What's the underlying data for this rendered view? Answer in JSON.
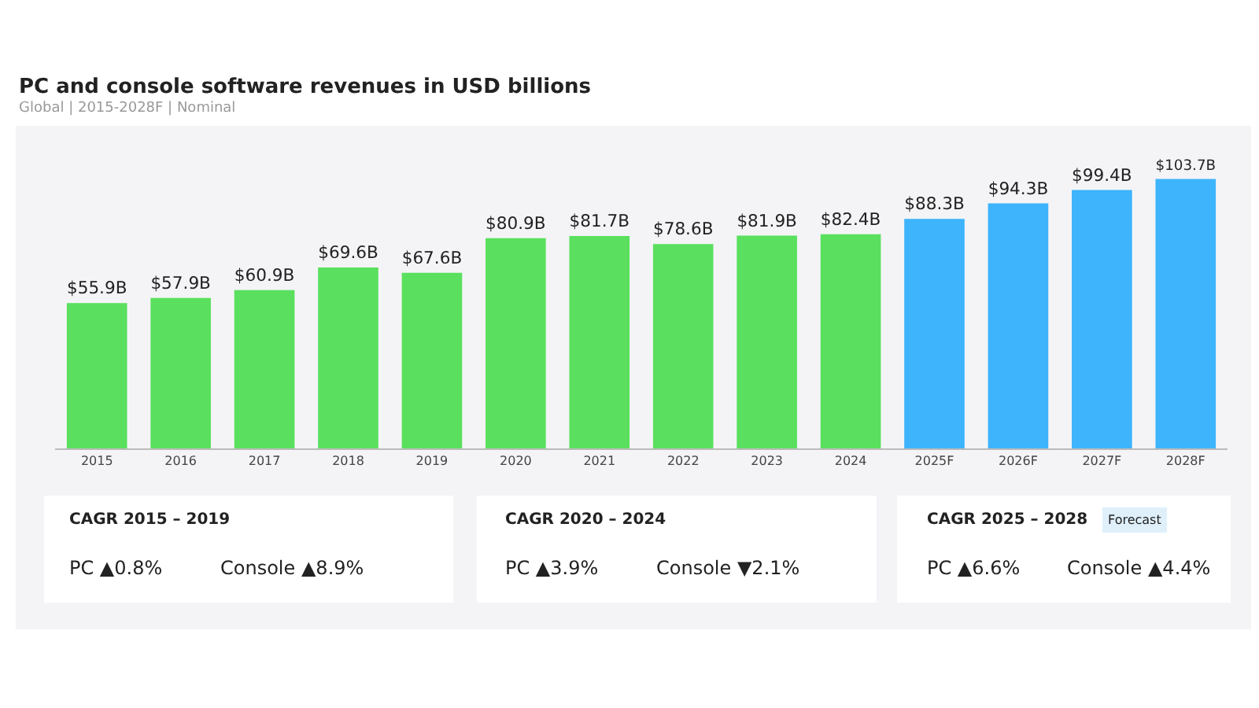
{
  "chart_data": {
    "type": "bar",
    "title": "PC and console software revenues in USD billions",
    "subtitle": "Global | 2015-2028F | Nominal",
    "categories": [
      "2015",
      "2016",
      "2017",
      "2018",
      "2019",
      "2020",
      "2021",
      "2022",
      "2023",
      "2024",
      "2025F",
      "2026F",
      "2027F",
      "2028F"
    ],
    "values": [
      55.9,
      57.9,
      60.9,
      69.6,
      67.6,
      80.9,
      81.7,
      78.6,
      81.9,
      82.4,
      88.3,
      94.3,
      99.4,
      103.7
    ],
    "value_labels": [
      "$55.9B",
      "$57.9B",
      "$60.9B",
      "$69.6B",
      "$67.6B",
      "$80.9B",
      "$81.7B",
      "$78.6B",
      "$81.9B",
      "$82.4B",
      "$88.3B",
      "$94.3B",
      "$99.4B",
      "$103.7B"
    ],
    "colors": [
      "#5ae05e",
      "#5ae05e",
      "#5ae05e",
      "#5ae05e",
      "#5ae05e",
      "#5ae05e",
      "#5ae05e",
      "#5ae05e",
      "#5ae05e",
      "#5ae05e",
      "#3db4fc",
      "#3db4fc",
      "#3db4fc",
      "#3db4fc"
    ],
    "annotations": [
      "CAGR 2015 – 2019",
      "PC ▲0.8%",
      "Console ▲8.9%",
      "CAGR 2020 – 2024",
      "PC ▲3.9%",
      "Console ▼2.1%",
      "CAGR 2025 – 2028",
      "Forecast",
      "PC ▲6.6%",
      "Console ▲4.4%"
    ]
  }
}
